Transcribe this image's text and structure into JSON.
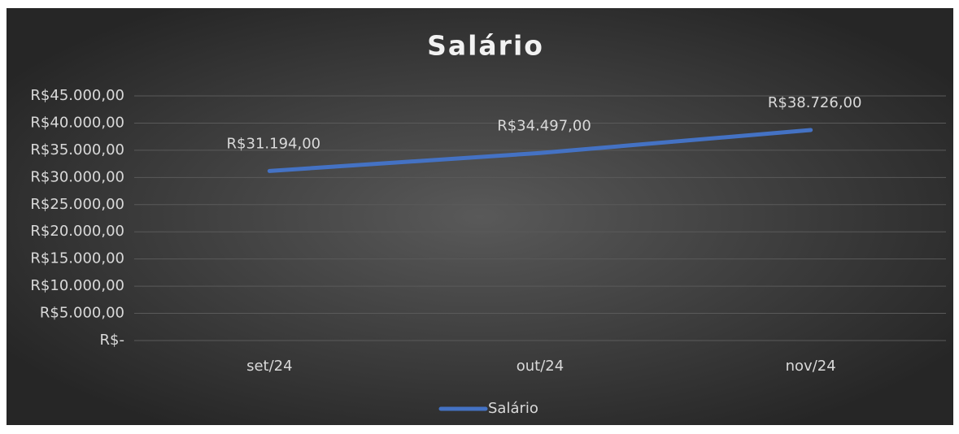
{
  "chart_data": {
    "type": "line",
    "title": "Salário",
    "categories": [
      "set/24",
      "out/24",
      "nov/24"
    ],
    "series": [
      {
        "name": "Salário",
        "color": "#4472c4",
        "values": [
          31194,
          34497,
          38726
        ],
        "value_labels": [
          "R$31.194,00",
          "R$34.497,00",
          "R$38.726,00"
        ]
      }
    ],
    "ylim": [
      0,
      45000
    ],
    "yticks": [
      {
        "value": 0,
        "label": "R$-"
      },
      {
        "value": 5000,
        "label": "R$5.000,00"
      },
      {
        "value": 10000,
        "label": "R$10.000,00"
      },
      {
        "value": 15000,
        "label": "R$15.000,00"
      },
      {
        "value": 20000,
        "label": "R$20.000,00"
      },
      {
        "value": 25000,
        "label": "R$25.000,00"
      },
      {
        "value": 30000,
        "label": "R$30.000,00"
      },
      {
        "value": 35000,
        "label": "R$35.000,00"
      },
      {
        "value": 40000,
        "label": "R$40.000,00"
      },
      {
        "value": 45000,
        "label": "R$45.000,00"
      }
    ],
    "grid": true,
    "legend": "bottom"
  }
}
